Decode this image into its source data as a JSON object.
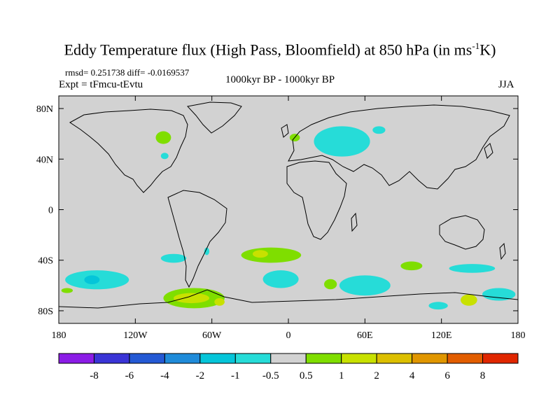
{
  "title": {
    "main": "Eddy Temperature flux (High Pass, Bloomfield) at 850 hPa (in ms",
    "superscript": "-1",
    "unit_end": "K)"
  },
  "stats_line": "rmsd= 0.251738 diff= -0.0169537",
  "experiment": "Expt = tFmcu-tEvtu",
  "period": "1000kyr BP - 1000kyr BP",
  "season": "JJA",
  "map": {
    "projection": "cylindrical-equidistant",
    "background_color": "#d2d2d2",
    "lon_range": [
      -180,
      180
    ],
    "lat_range": [
      -90,
      90
    ],
    "x_ticks": [
      {
        "lon": -180,
        "label": "180"
      },
      {
        "lon": -120,
        "label": "120W"
      },
      {
        "lon": -60,
        "label": "60W"
      },
      {
        "lon": 0,
        "label": "0"
      },
      {
        "lon": 60,
        "label": "60E"
      },
      {
        "lon": 120,
        "label": "120E"
      },
      {
        "lon": 180,
        "label": "180"
      }
    ],
    "y_ticks": [
      {
        "lat": 80,
        "label": "80N"
      },
      {
        "lat": 40,
        "label": "40N"
      },
      {
        "lat": 0,
        "label": "0"
      },
      {
        "lat": -40,
        "label": "40S"
      },
      {
        "lat": -80,
        "label": "80S"
      }
    ],
    "anomaly_regions": [
      {
        "name": "n-america-green",
        "color": "#7fde00",
        "lon": [
          -104,
          -92
        ],
        "lat": [
          52,
          62
        ]
      },
      {
        "name": "n-america-cyan",
        "color": "#26dcd8",
        "lon": [
          -100,
          -94
        ],
        "lat": [
          40,
          45
        ]
      },
      {
        "name": "europe-green",
        "color": "#7fde00",
        "lon": [
          1,
          9
        ],
        "lat": [
          54,
          60
        ]
      },
      {
        "name": "russia-cyan",
        "color": "#26dcd8",
        "lon": [
          20,
          64
        ],
        "lat": [
          42,
          66
        ]
      },
      {
        "name": "siberia-cyan",
        "color": "#26dcd8",
        "lon": [
          66,
          76
        ],
        "lat": [
          60,
          66
        ]
      },
      {
        "name": "s-atlantic-green",
        "color": "#7fde00",
        "lon": [
          -37,
          10
        ],
        "lat": [
          -42,
          -30
        ]
      },
      {
        "name": "s-atlantic-yellow",
        "color": "#c8e100",
        "lon": [
          -28,
          -16
        ],
        "lat": [
          -38,
          -32
        ]
      },
      {
        "name": "andes-cyan",
        "color": "#26dcd8",
        "lon": [
          -66,
          -62
        ],
        "lat": [
          -36,
          -30
        ]
      },
      {
        "name": "s-pacific-cyan-west",
        "color": "#26dcd8",
        "lon": [
          -100,
          -80
        ],
        "lat": [
          -42,
          -35
        ]
      },
      {
        "name": "s-pacific-cyan-east",
        "color": "#26dcd8",
        "lon": [
          -175,
          -125
        ],
        "lat": [
          -63,
          -48
        ]
      },
      {
        "name": "s-pacific-blue",
        "color": "#05c5d9",
        "lon": [
          -160,
          -148
        ],
        "lat": [
          -59,
          -52
        ]
      },
      {
        "name": "s-ocean-cyan-atl",
        "color": "#26dcd8",
        "lon": [
          -20,
          8
        ],
        "lat": [
          -62,
          -48
        ]
      },
      {
        "name": "s-ocean-green-mid",
        "color": "#7fde00",
        "lon": [
          28,
          38
        ],
        "lat": [
          -63,
          -55
        ]
      },
      {
        "name": "s-ocean-cyan-ind",
        "color": "#26dcd8",
        "lon": [
          40,
          80
        ],
        "lat": [
          -68,
          -52
        ]
      },
      {
        "name": "s-ocean-green-ind",
        "color": "#7fde00",
        "lon": [
          88,
          105
        ],
        "lat": [
          -48,
          -41
        ]
      },
      {
        "name": "s-ocean-cyan-aus",
        "color": "#26dcd8",
        "lon": [
          126,
          162
        ],
        "lat": [
          -50,
          -43
        ]
      },
      {
        "name": "s-ocean-cyan-ross",
        "color": "#26dcd8",
        "lon": [
          152,
          178
        ],
        "lat": [
          -72,
          -62
        ]
      },
      {
        "name": "antarctic-green",
        "color": "#7fde00",
        "lon": [
          -98,
          -50
        ],
        "lat": [
          -78,
          -62
        ]
      },
      {
        "name": "antarctic-yellow",
        "color": "#c8e100",
        "lon": [
          -90,
          -62
        ],
        "lat": [
          -74,
          -66
        ]
      },
      {
        "name": "antarctic-yellow-2",
        "color": "#c8e100",
        "lon": [
          -58,
          -50
        ],
        "lat": [
          -76,
          -70
        ]
      },
      {
        "name": "e-antarctic-yellow",
        "color": "#c8e100",
        "lon": [
          135,
          148
        ],
        "lat": [
          -76,
          -67
        ]
      },
      {
        "name": "e-antarctic-cyan",
        "color": "#26dcd8",
        "lon": [
          110,
          125
        ],
        "lat": [
          -79,
          -73
        ]
      },
      {
        "name": "s-pacific-green-far",
        "color": "#7fde00",
        "lon": [
          -178,
          -169
        ],
        "lat": [
          -66,
          -62
        ]
      }
    ]
  },
  "colorbar": {
    "colors": [
      "#8b1ce6",
      "#3a34d6",
      "#2459d4",
      "#1f8bd9",
      "#05c5d9",
      "#26dcd8",
      "#d2d2d2",
      "#7fde00",
      "#c8e100",
      "#dcbf00",
      "#e09600",
      "#e25d00",
      "#e02600"
    ],
    "labels": [
      "-8",
      "-6",
      "-4",
      "-2",
      "-1",
      "-0.5",
      "0.5",
      "1",
      "2",
      "4",
      "6",
      "8"
    ]
  }
}
